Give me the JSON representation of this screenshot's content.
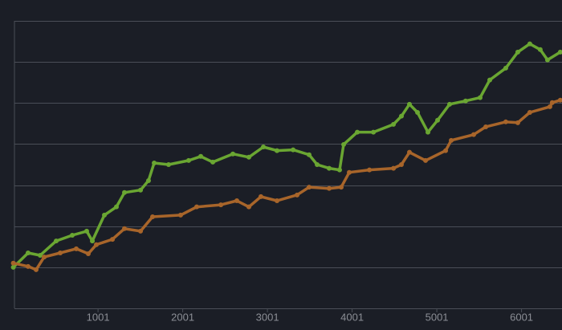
{
  "chart_data": {
    "type": "line",
    "xlim": [
      0,
      6460
    ],
    "xticks": [
      1001,
      2001,
      3001,
      4001,
      5001,
      6001
    ],
    "ylim": [
      0,
      7
    ],
    "ygrid": [
      0,
      1,
      2,
      3,
      4,
      5,
      6,
      7
    ],
    "series": [
      {
        "color": "#6aa632",
        "x": [
          1,
          175,
          318,
          507,
          697,
          867,
          934,
          1076,
          1218,
          1313,
          1503,
          1597,
          1664,
          1834,
          2071,
          2214,
          2356,
          2593,
          2782,
          2953,
          3114,
          3304,
          3493,
          3588,
          3730,
          3853,
          3901,
          4062,
          4252,
          4489,
          4583,
          4678,
          4773,
          4896,
          5010,
          5152,
          5341,
          5512,
          5626,
          5815,
          5957,
          6099,
          6222,
          6308,
          6459
        ],
        "values": [
          1.0,
          1.35,
          1.29,
          1.64,
          1.78,
          1.88,
          1.64,
          2.27,
          2.47,
          2.82,
          2.88,
          3.11,
          3.54,
          3.5,
          3.6,
          3.7,
          3.56,
          3.76,
          3.68,
          3.93,
          3.84,
          3.86,
          3.74,
          3.5,
          3.41,
          3.37,
          3.99,
          4.29,
          4.29,
          4.48,
          4.68,
          4.97,
          4.77,
          4.29,
          4.58,
          4.97,
          5.05,
          5.13,
          5.56,
          5.85,
          6.24,
          6.44,
          6.3,
          6.05,
          6.24
        ]
      },
      {
        "color": "#a8652a",
        "x": [
          1,
          175,
          270,
          365,
          555,
          744,
          886,
          981,
          1171,
          1313,
          1503,
          1645,
          1976,
          2166,
          2451,
          2640,
          2782,
          2924,
          3114,
          3351,
          3493,
          3730,
          3872,
          3967,
          4205,
          4489,
          4583,
          4678,
          4868,
          5105,
          5171,
          5436,
          5579,
          5815,
          5957,
          6099,
          6336,
          6364,
          6459
        ],
        "values": [
          1.1,
          1.02,
          0.94,
          1.25,
          1.35,
          1.45,
          1.33,
          1.55,
          1.68,
          1.94,
          1.88,
          2.23,
          2.27,
          2.47,
          2.52,
          2.62,
          2.47,
          2.72,
          2.62,
          2.76,
          2.95,
          2.92,
          2.95,
          3.31,
          3.37,
          3.41,
          3.5,
          3.8,
          3.6,
          3.84,
          4.09,
          4.23,
          4.42,
          4.54,
          4.52,
          4.77,
          4.91,
          5.01,
          5.07
        ]
      }
    ]
  }
}
